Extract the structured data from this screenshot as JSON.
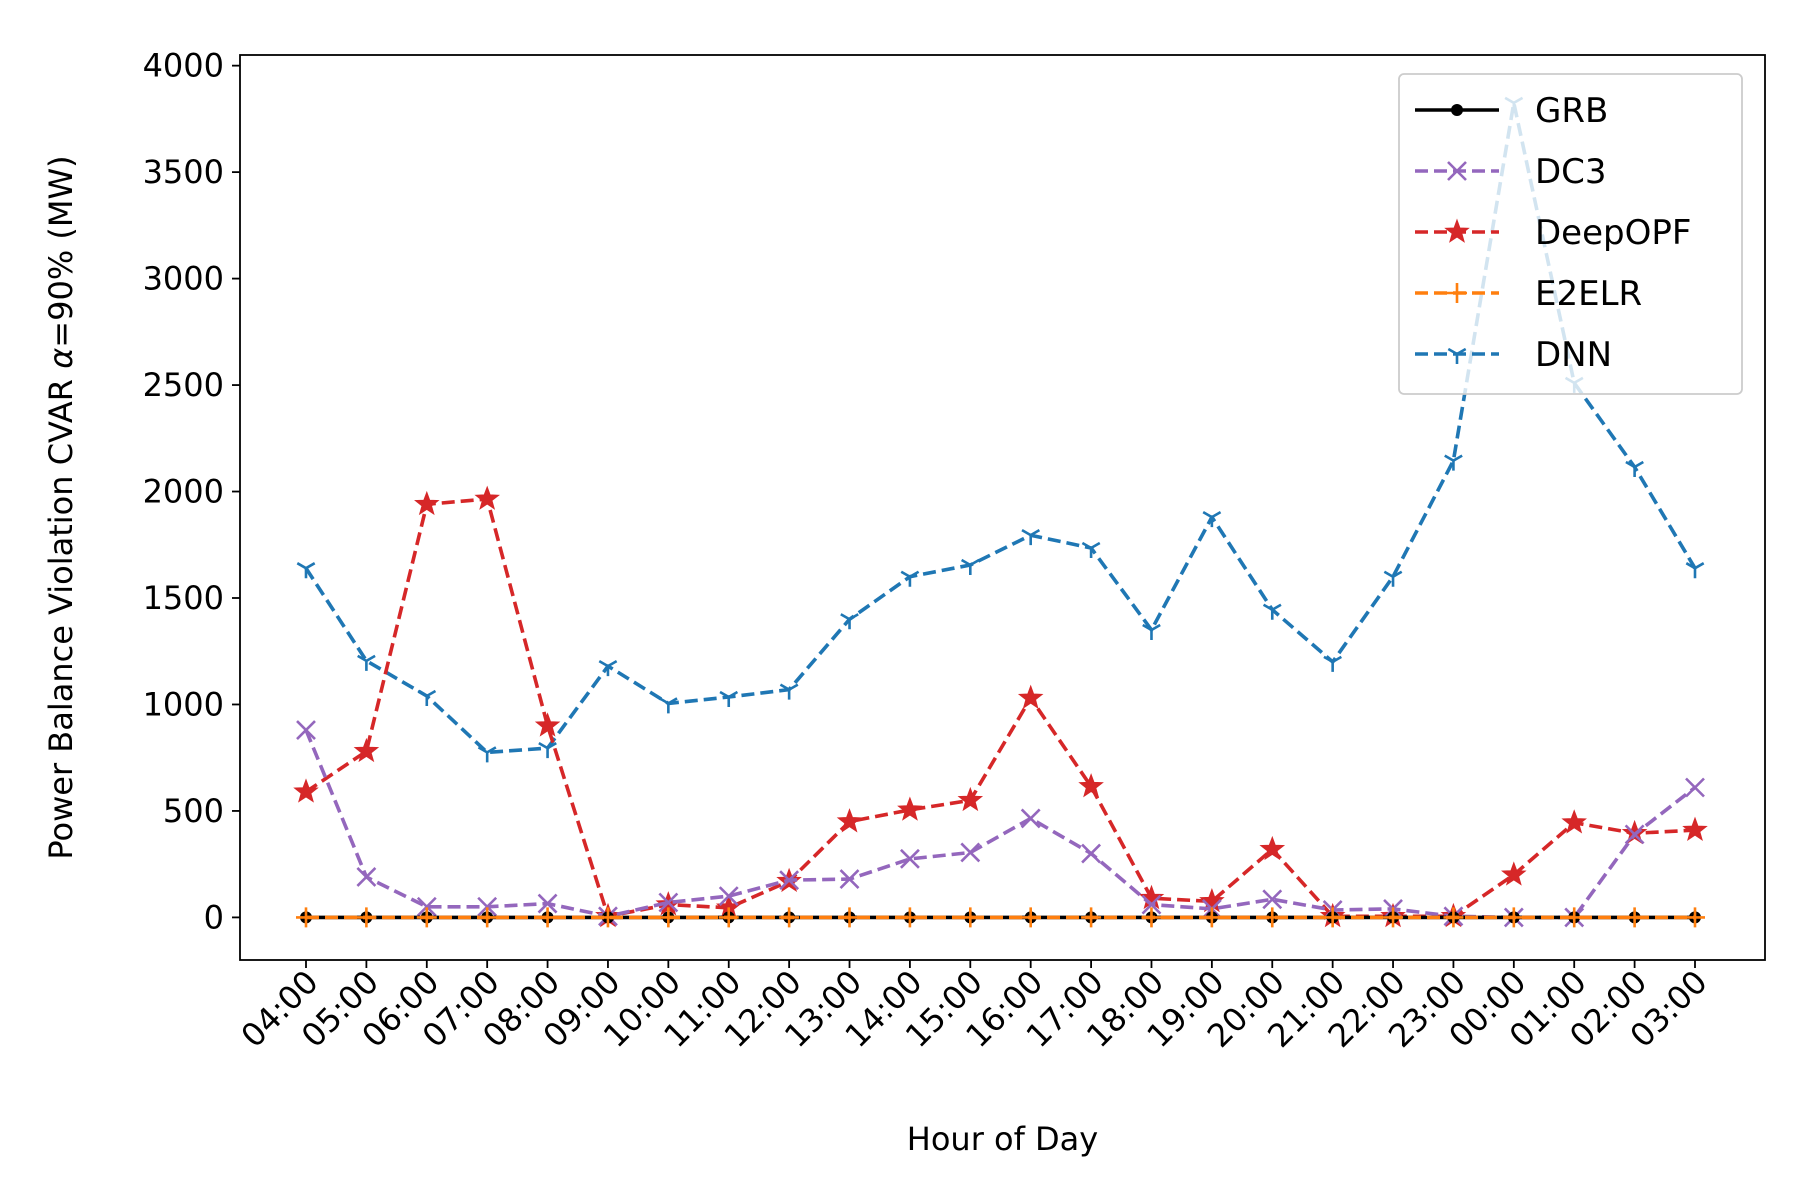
{
  "chart_data": {
    "type": "line",
    "xlabel": "Hour of Day",
    "ylabel_prefix": "Power Balance Violation CVAR ",
    "ylabel_symbol": "α",
    "ylabel_suffix": "=90% (MW)",
    "categories": [
      "04:00",
      "05:00",
      "06:00",
      "07:00",
      "08:00",
      "09:00",
      "10:00",
      "11:00",
      "12:00",
      "13:00",
      "14:00",
      "15:00",
      "16:00",
      "17:00",
      "18:00",
      "19:00",
      "20:00",
      "21:00",
      "22:00",
      "23:00",
      "00:00",
      "01:00",
      "02:00",
      "03:00"
    ],
    "ylim": [
      -200,
      4050
    ],
    "yticks": [
      0,
      500,
      1000,
      1500,
      2000,
      2500,
      3000,
      3500,
      4000
    ],
    "legend_position": "top-right",
    "grid": false,
    "series": [
      {
        "name": "GRB",
        "color": "#000000",
        "dash": "solid",
        "marker": "dot",
        "values": [
          0,
          0,
          0,
          0,
          0,
          0,
          0,
          0,
          0,
          0,
          0,
          0,
          0,
          0,
          0,
          0,
          0,
          0,
          0,
          0,
          0,
          0,
          0,
          0
        ]
      },
      {
        "name": "DC3",
        "color": "#9467bd",
        "dash": "dashed",
        "marker": "x",
        "values": [
          880,
          190,
          50,
          50,
          65,
          5,
          70,
          100,
          175,
          180,
          275,
          305,
          465,
          300,
          60,
          40,
          85,
          35,
          40,
          5,
          0,
          0,
          390,
          610
        ]
      },
      {
        "name": "DeepOPF",
        "color": "#d62728",
        "dash": "dashed",
        "marker": "star",
        "values": [
          590,
          780,
          1940,
          1965,
          900,
          5,
          60,
          45,
          170,
          450,
          505,
          550,
          1030,
          615,
          90,
          75,
          320,
          5,
          5,
          5,
          200,
          445,
          395,
          410
        ]
      },
      {
        "name": "E2ELR",
        "color": "#ff7f0e",
        "dash": "dashed",
        "marker": "plus",
        "values": [
          0,
          0,
          0,
          0,
          0,
          0,
          0,
          0,
          0,
          0,
          0,
          0,
          0,
          0,
          0,
          0,
          0,
          0,
          0,
          0,
          0,
          0,
          0,
          0
        ]
      },
      {
        "name": "DNN",
        "color": "#1f77b4",
        "dash": "dashed",
        "marker": "tri",
        "values": [
          1640,
          1205,
          1040,
          775,
          795,
          1180,
          1005,
          1035,
          1070,
          1400,
          1600,
          1655,
          1795,
          1735,
          1350,
          1880,
          1445,
          1200,
          1600,
          2145,
          3825,
          2510,
          2115,
          1640
        ]
      }
    ]
  }
}
